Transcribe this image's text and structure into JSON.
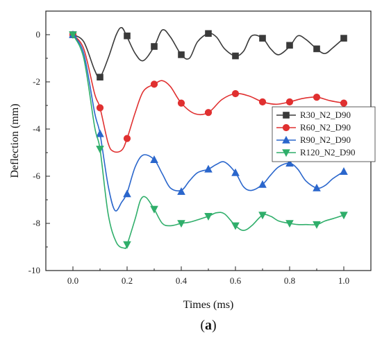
{
  "chart_data": {
    "type": "line",
    "xlabel": "Times (ms)",
    "ylabel": "Deflection (mm)",
    "xlim": [
      -0.1,
      1.1
    ],
    "ylim": [
      -10,
      1
    ],
    "xticks": [
      0.0,
      0.2,
      0.4,
      0.6,
      0.8,
      1.0
    ],
    "xtick_labels": [
      "0.0",
      "0.2",
      "0.4",
      "0.6",
      "0.8",
      "1.0"
    ],
    "yticks": [
      -10,
      -8,
      -6,
      -4,
      -2,
      0
    ],
    "ytick_labels": [
      "-10",
      "-8",
      "-6",
      "-4",
      "-2",
      "0"
    ],
    "grid": false,
    "legend_position": "right",
    "caption_prefix": "(",
    "caption_letter": "a",
    "caption_suffix": ")",
    "series": [
      {
        "name": "R30_N2_D90",
        "color": "#3a3a3a",
        "marker": "square",
        "x": [
          0,
          0.04,
          0.08,
          0.1,
          0.13,
          0.16,
          0.18,
          0.2,
          0.23,
          0.26,
          0.3,
          0.33,
          0.36,
          0.4,
          0.43,
          0.46,
          0.5,
          0.53,
          0.56,
          0.6,
          0.63,
          0.66,
          0.7,
          0.73,
          0.76,
          0.8,
          0.83,
          0.86,
          0.9,
          0.93,
          0.96,
          1.0
        ],
        "y": [
          0,
          -0.3,
          -1.5,
          -1.8,
          -1.0,
          0.0,
          0.3,
          -0.1,
          -0.8,
          -1.1,
          -0.5,
          0.2,
          -0.1,
          -0.85,
          -1.0,
          -0.3,
          0.05,
          -0.1,
          -0.6,
          -0.9,
          -0.7,
          -0.05,
          -0.15,
          -0.6,
          -0.85,
          -0.5,
          -0.05,
          -0.2,
          -0.6,
          -0.8,
          -0.55,
          -0.15
        ],
        "marker_x": [
          0,
          0.1,
          0.2,
          0.3,
          0.4,
          0.5,
          0.6,
          0.7,
          0.8,
          0.9,
          1.0
        ],
        "marker_y": [
          0,
          -1.8,
          -0.05,
          -0.5,
          -0.85,
          0.05,
          -0.9,
          -0.15,
          -0.45,
          -0.6,
          -0.15
        ]
      },
      {
        "name": "R60_N2_D90",
        "color": "#e03030",
        "marker": "circle",
        "x": [
          0,
          0.04,
          0.08,
          0.1,
          0.13,
          0.15,
          0.18,
          0.2,
          0.23,
          0.26,
          0.3,
          0.33,
          0.36,
          0.4,
          0.45,
          0.5,
          0.55,
          0.6,
          0.65,
          0.7,
          0.75,
          0.8,
          0.85,
          0.9,
          0.95,
          1.0
        ],
        "y": [
          0,
          -0.6,
          -2.5,
          -3.1,
          -4.6,
          -4.95,
          -4.9,
          -4.4,
          -3.3,
          -2.4,
          -2.1,
          -1.95,
          -2.2,
          -2.9,
          -3.35,
          -3.3,
          -2.75,
          -2.5,
          -2.6,
          -2.85,
          -2.95,
          -2.85,
          -2.7,
          -2.65,
          -2.8,
          -2.9
        ],
        "marker_x": [
          0,
          0.1,
          0.2,
          0.3,
          0.4,
          0.5,
          0.6,
          0.7,
          0.8,
          0.9,
          1.0
        ],
        "marker_y": [
          0,
          -3.1,
          -4.4,
          -2.1,
          -2.9,
          -3.3,
          -2.5,
          -2.85,
          -2.85,
          -2.65,
          -2.9
        ]
      },
      {
        "name": "R90_N2_D90",
        "color": "#2a66cc",
        "marker": "triangle-up",
        "x": [
          0,
          0.04,
          0.08,
          0.1,
          0.13,
          0.155,
          0.18,
          0.2,
          0.23,
          0.26,
          0.3,
          0.33,
          0.36,
          0.4,
          0.43,
          0.46,
          0.5,
          0.53,
          0.56,
          0.6,
          0.63,
          0.66,
          0.7,
          0.73,
          0.76,
          0.8,
          0.83,
          0.86,
          0.9,
          0.93,
          0.96,
          1.0
        ],
        "y": [
          0,
          -0.8,
          -3.3,
          -4.2,
          -6.4,
          -7.45,
          -7.1,
          -6.7,
          -5.6,
          -5.1,
          -5.3,
          -5.9,
          -6.5,
          -6.6,
          -6.2,
          -5.85,
          -5.7,
          -5.5,
          -5.4,
          -5.85,
          -6.45,
          -6.6,
          -6.35,
          -5.95,
          -5.6,
          -5.45,
          -5.7,
          -6.2,
          -6.5,
          -6.4,
          -6.1,
          -5.8
        ],
        "marker_x": [
          0,
          0.1,
          0.2,
          0.3,
          0.4,
          0.5,
          0.6,
          0.7,
          0.8,
          0.9,
          1.0
        ],
        "marker_y": [
          0,
          -4.2,
          -6.75,
          -5.3,
          -6.65,
          -5.7,
          -5.85,
          -6.35,
          -5.45,
          -6.5,
          -5.8
        ]
      },
      {
        "name": "R120_N2_D90",
        "color": "#2fae6a",
        "marker": "triangle-down",
        "x": [
          0,
          0.04,
          0.08,
          0.1,
          0.13,
          0.16,
          0.19,
          0.2,
          0.23,
          0.25,
          0.27,
          0.3,
          0.33,
          0.36,
          0.4,
          0.43,
          0.46,
          0.5,
          0.53,
          0.56,
          0.6,
          0.63,
          0.66,
          0.7,
          0.73,
          0.76,
          0.8,
          0.83,
          0.86,
          0.9,
          0.93,
          0.96,
          1.0
        ],
        "y": [
          0,
          -1.0,
          -3.9,
          -4.85,
          -7.6,
          -8.8,
          -9.05,
          -8.9,
          -7.8,
          -7.0,
          -6.9,
          -7.4,
          -8.0,
          -8.1,
          -8.0,
          -7.95,
          -7.85,
          -7.7,
          -7.55,
          -7.6,
          -8.1,
          -8.3,
          -8.1,
          -7.65,
          -7.7,
          -7.9,
          -8.0,
          -8.05,
          -8.05,
          -8.05,
          -7.9,
          -7.8,
          -7.65
        ],
        "marker_x": [
          0,
          0.1,
          0.2,
          0.3,
          0.4,
          0.5,
          0.6,
          0.7,
          0.8,
          0.9,
          1.0
        ],
        "marker_y": [
          0,
          -4.85,
          -8.9,
          -7.4,
          -8.0,
          -7.7,
          -8.1,
          -7.65,
          -8.0,
          -8.05,
          -7.65
        ]
      }
    ]
  }
}
